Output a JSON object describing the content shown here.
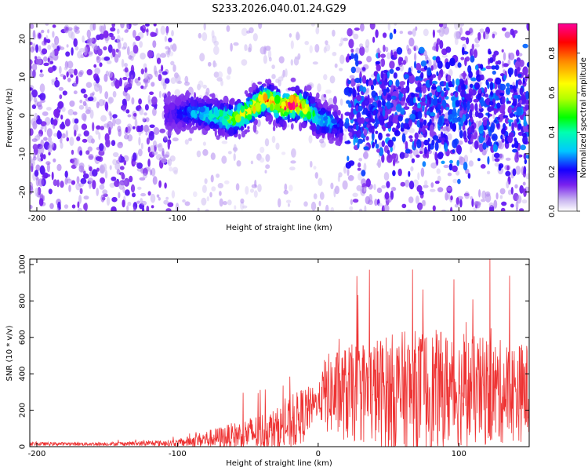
{
  "title": "S233.2026.040.01.24.G29",
  "chart_data": [
    {
      "type": "heatmap",
      "xlabel": "Height of straight line (km)",
      "ylabel": "Frequency (Hz)",
      "xlim": [
        -205,
        150
      ],
      "ylim": [
        -25,
        24
      ],
      "xticks": [
        "-200",
        "-100",
        "0",
        "100"
      ],
      "xtick_values": [
        -200,
        -100,
        0,
        100
      ],
      "yticks": [
        "20",
        "10",
        "0",
        "-10",
        "-20"
      ],
      "ytick_values": [
        20,
        10,
        0,
        -10,
        -20
      ],
      "colorbar": {
        "label": "Normalized spectral amplitude",
        "ticks": [
          "0.0",
          "0.2",
          "0.4",
          "0.6",
          "0.8"
        ],
        "tick_values": [
          0.0,
          0.2,
          0.4,
          0.6,
          0.8
        ],
        "range": [
          0,
          0.95
        ]
      },
      "ridge": {
        "x": [
          -105,
          -90,
          -75,
          -60,
          -50,
          -40,
          -35,
          -25,
          -18,
          -10,
          -5,
          0,
          10,
          15
        ],
        "y": [
          0,
          1,
          0,
          -1,
          1,
          4,
          4,
          2,
          3,
          2,
          1,
          -1,
          -2,
          -3
        ],
        "amplitude": [
          0.05,
          0.2,
          0.3,
          0.5,
          0.6,
          0.7,
          0.75,
          0.8,
          0.9,
          0.8,
          0.4,
          0.3,
          0.2,
          0.1
        ]
      }
    },
    {
      "type": "line",
      "xlabel": "Height of straight line (km)",
      "ylabel": "SNR (10 * v/v)",
      "xlim": [
        -205,
        150
      ],
      "ylim": [
        0,
        1030
      ],
      "xticks": [
        "-200",
        "-100",
        "0",
        "100"
      ],
      "xtick_values": [
        -200,
        -100,
        0,
        100
      ],
      "yticks": [
        "1000",
        "800",
        "600",
        "400",
        "200",
        "0"
      ],
      "ytick_values": [
        1000,
        800,
        600,
        400,
        200,
        0
      ],
      "color": "#ee3333",
      "envelope": {
        "x": [
          -205,
          -150,
          -100,
          -80,
          -60,
          -40,
          -30,
          -20,
          -10,
          0,
          5,
          20,
          40,
          60,
          80,
          100,
          120,
          140,
          150
        ],
        "mean": [
          15,
          15,
          20,
          40,
          60,
          80,
          90,
          120,
          180,
          250,
          290,
          290,
          300,
          300,
          310,
          310,
          300,
          300,
          300
        ],
        "spread": [
          8,
          8,
          15,
          40,
          60,
          90,
          100,
          120,
          130,
          60,
          180,
          220,
          250,
          280,
          280,
          260,
          250,
          230,
          230
        ]
      }
    }
  ]
}
